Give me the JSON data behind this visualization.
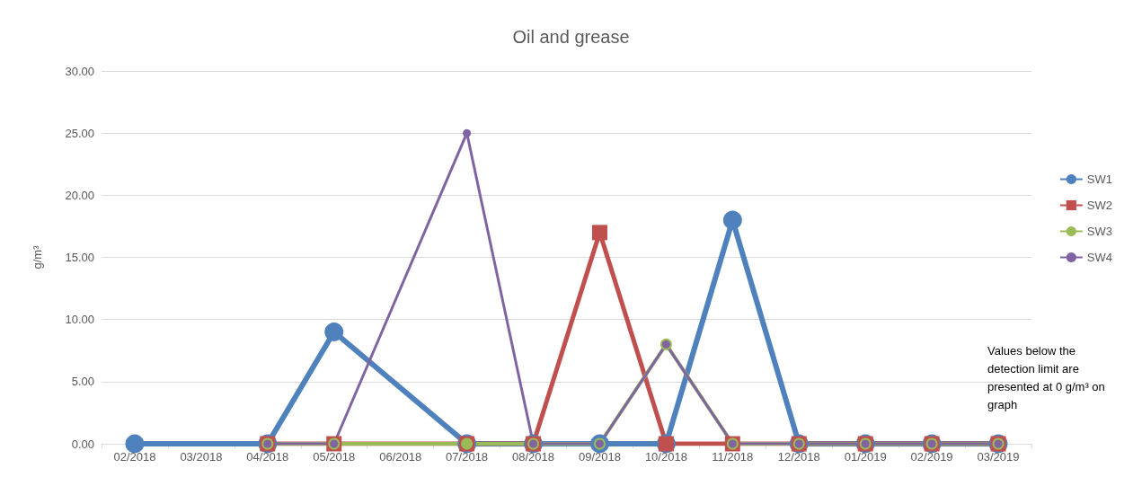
{
  "chart_data": {
    "type": "line",
    "title": "Oil and grease",
    "ylabel": "g/m³",
    "categories": [
      "02/2018",
      "03/2018",
      "04/2018",
      "05/2018",
      "06/2018",
      "07/2018",
      "08/2018",
      "09/2018",
      "10/2018",
      "11/2018",
      "12/2018",
      "01/2019",
      "02/2019",
      "03/2019"
    ],
    "series": [
      {
        "name": "SW1",
        "color": "#4f81bd",
        "marker": "circle",
        "values": [
          0,
          null,
          0,
          9,
          null,
          0,
          0,
          0,
          0,
          18,
          0,
          0,
          0,
          0
        ]
      },
      {
        "name": "SW2",
        "color": "#c0504d",
        "marker": "square",
        "values": [
          null,
          null,
          0,
          0,
          null,
          0,
          0,
          17,
          0,
          0,
          0,
          0,
          0,
          0
        ]
      },
      {
        "name": "SW3",
        "color": "#9bbb59",
        "marker": "circle",
        "values": [
          null,
          null,
          0,
          0,
          null,
          0,
          0,
          0,
          8,
          0,
          0,
          0,
          0,
          0
        ]
      },
      {
        "name": "SW4",
        "color": "#8064a2",
        "marker": "circle",
        "values": [
          null,
          null,
          0,
          0,
          null,
          25,
          0,
          0,
          8,
          0,
          0,
          0,
          0,
          0
        ]
      }
    ],
    "ylim": [
      0,
      30
    ],
    "yticks": [
      {
        "value": 0,
        "label": "0.00"
      },
      {
        "value": 5,
        "label": "5.00"
      },
      {
        "value": 10,
        "label": "10.00"
      },
      {
        "value": 15,
        "label": "15.00"
      },
      {
        "value": 20,
        "label": "20.00"
      },
      {
        "value": 25,
        "label": "25.00"
      },
      {
        "value": 30,
        "label": "30.00"
      }
    ],
    "grid": "y",
    "legend": "right",
    "annotations": [
      "Values below the detection limit are presented at 0 g/m³ on graph"
    ]
  }
}
